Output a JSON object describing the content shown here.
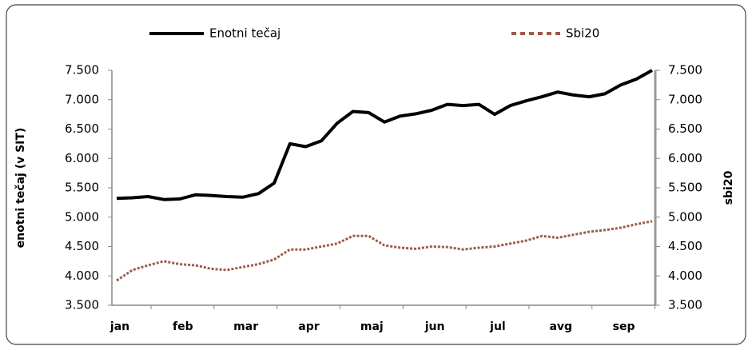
{
  "chart_data": {
    "type": "line",
    "y_label": "enotni tečaj  (v SIT)",
    "y2_label": "sbi20",
    "categories": [
      "jan",
      null,
      null,
      null,
      "feb",
      null,
      null,
      null,
      "mar",
      null,
      null,
      null,
      "apr",
      null,
      null,
      null,
      "maj",
      null,
      null,
      null,
      "jun",
      null,
      null,
      null,
      "jul",
      null,
      null,
      null,
      "avg",
      null,
      null,
      null,
      "sep",
      null,
      null
    ],
    "series": [
      {
        "name": "Enotni tečaj",
        "color": "#000000",
        "axis": "y",
        "values": [
          5320,
          5330,
          5350,
          5300,
          5310,
          5380,
          5370,
          5350,
          5340,
          5400,
          5580,
          6250,
          6200,
          6300,
          6600,
          6800,
          6780,
          6620,
          6720,
          6760,
          6820,
          6920,
          6900,
          6920,
          6750,
          6900,
          6980,
          7050,
          7130,
          7080,
          7050,
          7100,
          7250,
          7350,
          7500
        ]
      },
      {
        "name": "Sbi20",
        "color": "#9c5a46",
        "axis": "y2",
        "values": [
          3920,
          4100,
          4180,
          4250,
          4200,
          4180,
          4120,
          4100,
          4150,
          4200,
          4280,
          4450,
          4450,
          4500,
          4550,
          4680,
          4680,
          4520,
          4480,
          4460,
          4500,
          4490,
          4450,
          4480,
          4500,
          4550,
          4600,
          4680,
          4650,
          4700,
          4750,
          4780,
          4820,
          4880,
          4930
        ]
      }
    ],
    "ylim": [
      3500,
      7500
    ],
    "yticks": [
      {
        "value": 3500,
        "label": "3.500"
      },
      {
        "value": 4000,
        "label": "4.000"
      },
      {
        "value": 4500,
        "label": "4.500"
      },
      {
        "value": 5000,
        "label": "5.000"
      },
      {
        "value": 5500,
        "label": "5.500"
      },
      {
        "value": 6000,
        "label": "6.000"
      },
      {
        "value": 6500,
        "label": "6.500"
      },
      {
        "value": 7000,
        "label": "7.000"
      },
      {
        "value": 7500,
        "label": "7.500"
      }
    ],
    "y2lim": [
      3500,
      7500
    ],
    "y2ticks": [
      {
        "value": 3500,
        "label": "3.500"
      },
      {
        "value": 4000,
        "label": "4.000"
      },
      {
        "value": 4500,
        "label": "4.500"
      },
      {
        "value": 5000,
        "label": "5.000"
      },
      {
        "value": 5500,
        "label": "5.500"
      },
      {
        "value": 6000,
        "label": "6.000"
      },
      {
        "value": 6500,
        "label": "6.500"
      },
      {
        "value": 7000,
        "label": "7.000"
      },
      {
        "value": 7500,
        "label": "7.500"
      }
    ],
    "legend": "top"
  }
}
